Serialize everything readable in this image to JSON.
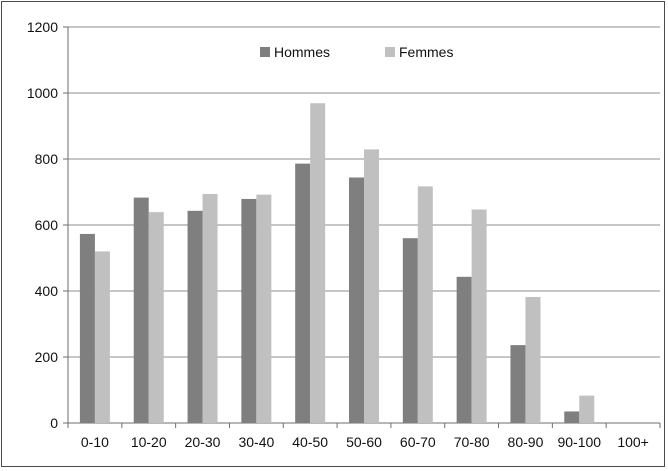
{
  "chart_data": {
    "type": "bar",
    "title": "",
    "xlabel": "",
    "ylabel": "",
    "categories": [
      "0-10",
      "10-20",
      "20-30",
      "30-40",
      "40-50",
      "50-60",
      "60-70",
      "70-80",
      "80-90",
      "90-100",
      "100+"
    ],
    "series": [
      {
        "name": "Hommes",
        "values": [
          573,
          683,
          643,
          679,
          786,
          744,
          560,
          443,
          236,
          35,
          0
        ],
        "color": "#7f7f7f"
      },
      {
        "name": "Femmes",
        "values": [
          520,
          639,
          694,
          692,
          969,
          829,
          717,
          647,
          382,
          83,
          0
        ],
        "color": "#c0c0c0"
      }
    ],
    "ylim": [
      0,
      1200
    ],
    "yticks": [
      0,
      200,
      400,
      600,
      800,
      1000,
      1200
    ],
    "grid": true,
    "legend_position": "top-center"
  }
}
